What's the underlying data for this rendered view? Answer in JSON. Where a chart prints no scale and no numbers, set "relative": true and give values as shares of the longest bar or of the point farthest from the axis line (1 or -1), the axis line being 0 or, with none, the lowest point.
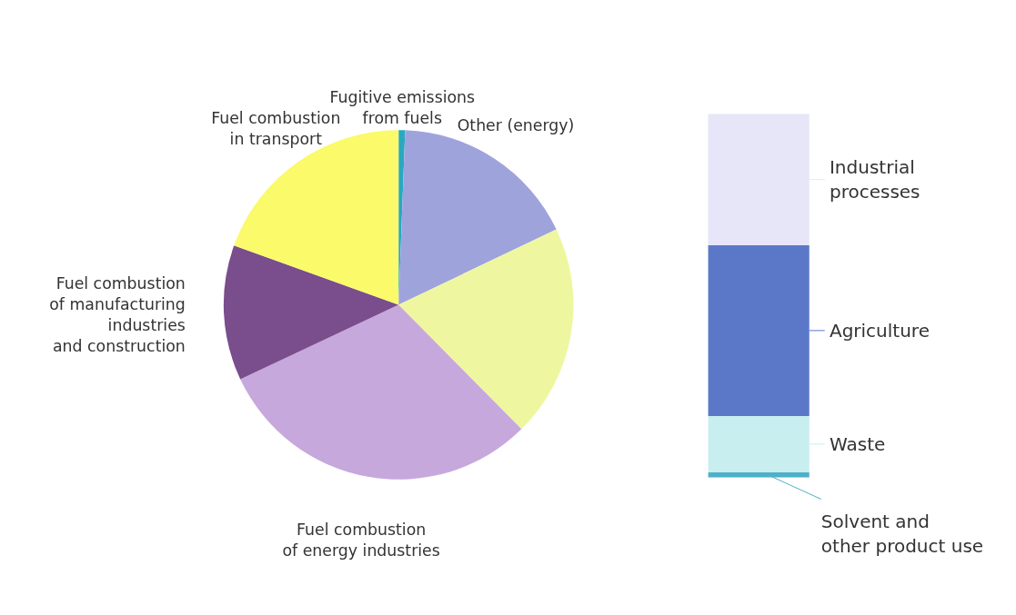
{
  "chart_data": [
    {
      "type": "pie",
      "categories": [
        "Fugitive emissions\nfrom fuels",
        "Other (energy)",
        null,
        "Fuel combustion\nof energy industries",
        "Fuel combustion\nof manufacturing\nindustries\nand construction",
        "Fuel combustion\nin transport"
      ],
      "values": [
        0.6,
        17.3,
        19.7,
        30.4,
        12.5,
        19.5
      ],
      "colors": [
        "#2aa8c0",
        "#9fa3dc",
        "#eef7a0",
        "#c7a8dc",
        "#7a4d8c",
        "#fafa6a"
      ]
    },
    {
      "type": "bar",
      "stacked": true,
      "relative": true,
      "legend": "right",
      "categories": [
        null
      ],
      "series": [
        {
          "name": "Solvent and\nother product use",
          "color": "#4fb0c8",
          "values": [
            0.014
          ]
        },
        {
          "name": "Waste",
          "color": "#c8eef0",
          "values": [
            0.155
          ]
        },
        {
          "name": "Agriculture",
          "color": "#5b78c8",
          "values": [
            0.47
          ]
        },
        {
          "name": "Industrial\nprocesses",
          "color": "#e6e6f8",
          "values": [
            0.361
          ]
        }
      ]
    }
  ]
}
